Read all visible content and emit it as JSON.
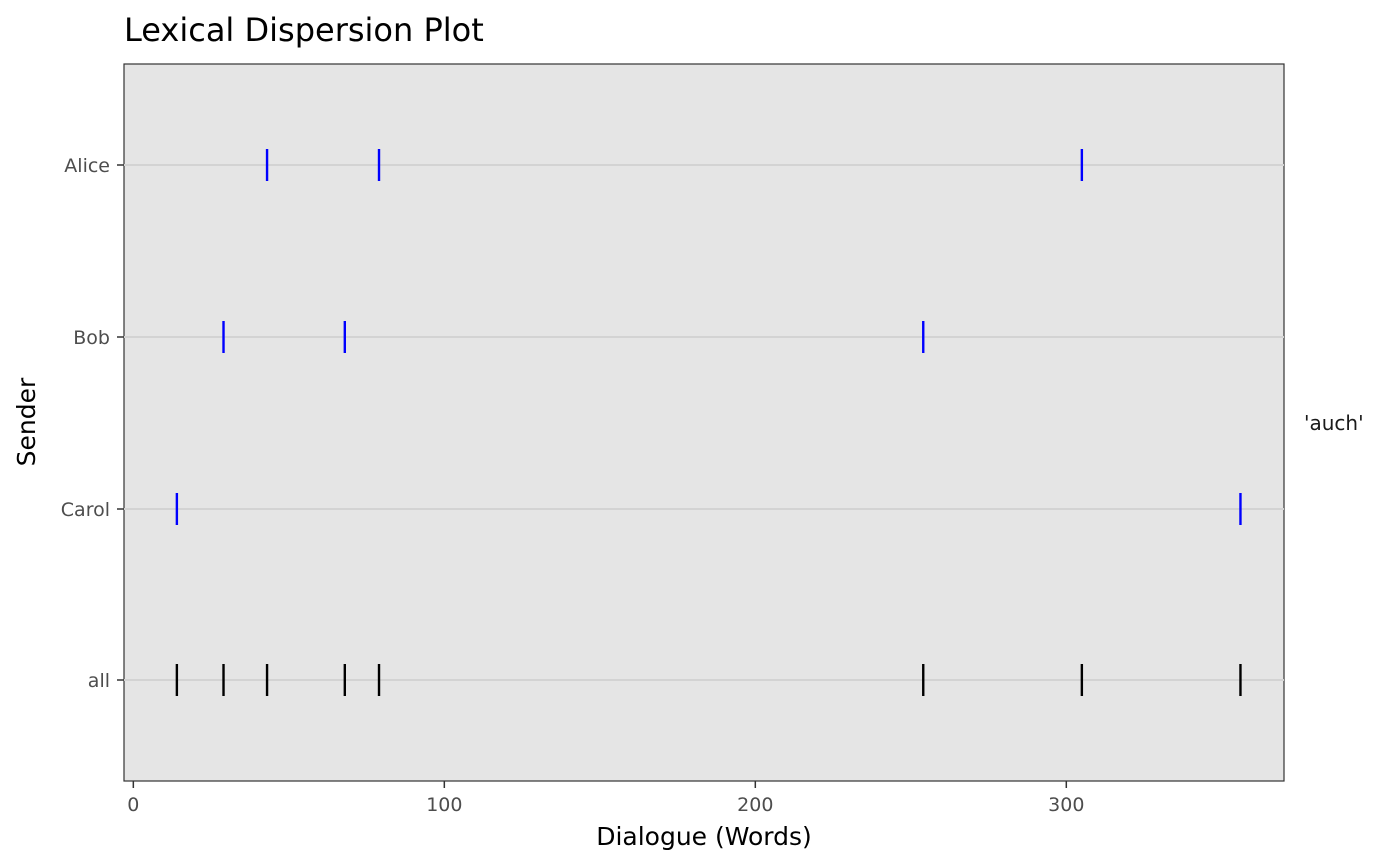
{
  "chart_data": {
    "type": "scatter",
    "mark": "vertical-tick",
    "title": "Lexical Dispersion Plot",
    "xlabel": "Dialogue (Words)",
    "ylabel": "Sender",
    "facet_label": "'auch'",
    "xlim": [
      -3,
      370
    ],
    "x_ticks": [
      0,
      100,
      200,
      300
    ],
    "y_categories": [
      "Alice",
      "Bob",
      "Carol",
      "all"
    ],
    "grid": true,
    "series": [
      {
        "category": "Alice",
        "color": "#0000ff",
        "x": [
          43,
          79,
          305
        ]
      },
      {
        "category": "Bob",
        "color": "#0000ff",
        "x": [
          29,
          68,
          254
        ]
      },
      {
        "category": "Carol",
        "color": "#0000ff",
        "x": [
          14,
          356
        ]
      },
      {
        "category": "all",
        "color": "#000000",
        "x": [
          14,
          29,
          43,
          68,
          79,
          254,
          305,
          356
        ]
      }
    ],
    "panel_background": "#e5e5e5",
    "grid_color": "#d3d3d3"
  }
}
